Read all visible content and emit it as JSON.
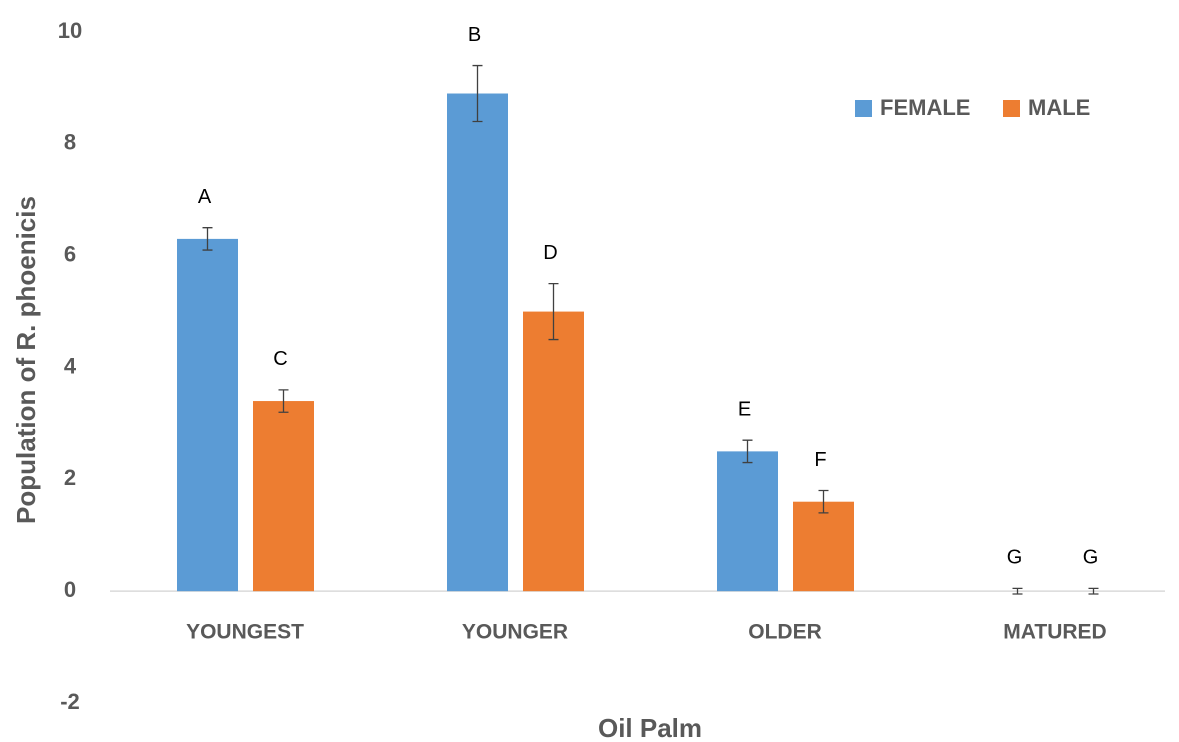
{
  "chart_data": {
    "type": "bar",
    "xlabel": "Oil Palm",
    "ylabel": "Population of R. phoenicis",
    "categories": [
      "YOUNGEST",
      "YOUNGER",
      "OLDER",
      "MATURED"
    ],
    "series": [
      {
        "name": "FEMALE",
        "color": "#5b9bd5",
        "values": [
          6.3,
          8.9,
          2.5,
          0
        ],
        "errors": [
          0.2,
          0.5,
          0.2,
          0.05
        ],
        "labels": [
          "A",
          "B",
          "E",
          "G"
        ]
      },
      {
        "name": "MALE",
        "color": "#ed7d31",
        "values": [
          3.4,
          5.0,
          1.6,
          0
        ],
        "errors": [
          0.2,
          0.5,
          0.2,
          0.05
        ],
        "labels": [
          "C",
          "D",
          "F",
          "G"
        ]
      }
    ],
    "ylim": [
      -2,
      10
    ],
    "yticks": [
      -2,
      0,
      2,
      4,
      6,
      8,
      10
    ],
    "grid": false,
    "legend": "top-right"
  }
}
